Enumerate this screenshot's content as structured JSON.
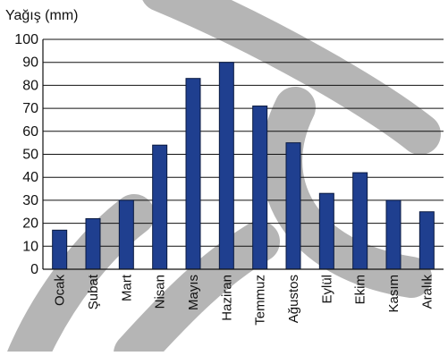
{
  "chart_data": {
    "type": "bar",
    "title": "",
    "ylabel": "Yağış (mm)",
    "xlabel": "",
    "categories": [
      "Ocak",
      "Şubat",
      "Mart",
      "Nisan",
      "Mayıs",
      "Haziran",
      "Temmuz",
      "Ağustos",
      "Eylül",
      "Ekim",
      "Kasım",
      "Aralık"
    ],
    "values": [
      17,
      22,
      30,
      54,
      83,
      90,
      71,
      55,
      33,
      42,
      30,
      25
    ],
    "ylim": [
      0,
      100
    ],
    "yticks": [
      "0",
      "10",
      "20",
      "30",
      "40",
      "50",
      "60",
      "70",
      "80",
      "90",
      "100"
    ],
    "grid": true,
    "bar_color": "#1f3f8f",
    "bar_edge_color": "#0a1a40",
    "watermark_color": "#a8a8a8"
  }
}
